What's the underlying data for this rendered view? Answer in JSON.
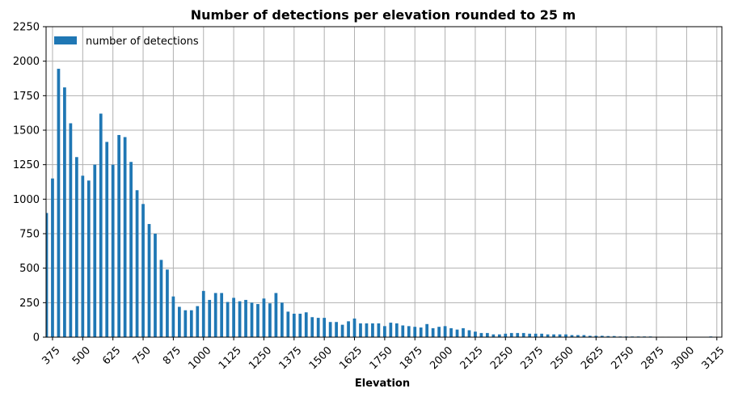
{
  "chart_data": {
    "type": "bar",
    "title": "Number of detections per elevation rounded to 25 m",
    "xlabel": "Elevation",
    "ylabel": "",
    "ylim": [
      0,
      2250
    ],
    "yticks": [
      0,
      250,
      500,
      750,
      1000,
      1250,
      1500,
      1750,
      2000,
      2250
    ],
    "xtick_labels": [
      "375",
      "500",
      "625",
      "750",
      "875",
      "1000",
      "1125",
      "1250",
      "1375",
      "1500",
      "1625",
      "1750",
      "1875",
      "2000",
      "2125",
      "2250",
      "2375",
      "2500",
      "2625",
      "2750",
      "2875",
      "3000",
      "3125"
    ],
    "grid": true,
    "legend": {
      "position": "top-left",
      "entries": [
        "number of detections"
      ]
    },
    "bar_color": "#1f77b4",
    "series": [
      {
        "name": "number of detections",
        "categories": [
          "350",
          "375",
          "400",
          "425",
          "450",
          "475",
          "500",
          "525",
          "550",
          "575",
          "600",
          "625",
          "650",
          "675",
          "700",
          "725",
          "750",
          "775",
          "800",
          "825",
          "850",
          "875",
          "900",
          "925",
          "950",
          "975",
          "1000",
          "1025",
          "1050",
          "1075",
          "1100",
          "1125",
          "1150",
          "1175",
          "1200",
          "1225",
          "1250",
          "1275",
          "1300",
          "1325",
          "1350",
          "1375",
          "1400",
          "1425",
          "1450",
          "1475",
          "1500",
          "1525",
          "1550",
          "1575",
          "1600",
          "1625",
          "1650",
          "1675",
          "1700",
          "1725",
          "1750",
          "1775",
          "1800",
          "1825",
          "1850",
          "1875",
          "1900",
          "1925",
          "1950",
          "1975",
          "2000",
          "2025",
          "2050",
          "2075",
          "2100",
          "2125",
          "2150",
          "2175",
          "2200",
          "2225",
          "2250",
          "2275",
          "2300",
          "2325",
          "2350",
          "2375",
          "2400",
          "2425",
          "2450",
          "2475",
          "2500",
          "2525",
          "2550",
          "2575",
          "2600",
          "2625",
          "2650",
          "2675",
          "2700",
          "2725",
          "2750",
          "2775",
          "2800",
          "2825",
          "2850",
          "2875",
          "2900",
          "2925",
          "2950",
          "2975",
          "3000",
          "3025",
          "3050",
          "3075",
          "3100",
          "3125"
        ],
        "values": [
          900,
          1150,
          1945,
          1810,
          1550,
          1305,
          1170,
          1135,
          1250,
          1620,
          1415,
          1250,
          1465,
          1450,
          1270,
          1065,
          965,
          820,
          750,
          560,
          490,
          295,
          220,
          195,
          195,
          225,
          335,
          270,
          320,
          320,
          255,
          285,
          260,
          270,
          250,
          240,
          280,
          245,
          320,
          250,
          185,
          170,
          170,
          180,
          145,
          140,
          140,
          110,
          110,
          90,
          115,
          135,
          100,
          100,
          100,
          100,
          80,
          105,
          100,
          85,
          80,
          75,
          70,
          95,
          65,
          75,
          80,
          65,
          55,
          65,
          50,
          40,
          30,
          30,
          20,
          20,
          25,
          30,
          30,
          30,
          25,
          25,
          25,
          20,
          20,
          20,
          20,
          15,
          15,
          15,
          10,
          10,
          10,
          8,
          8,
          5,
          5,
          5,
          5,
          5,
          5,
          3,
          3,
          3,
          2,
          2,
          2,
          2,
          2,
          2,
          5,
          3
        ]
      }
    ]
  }
}
